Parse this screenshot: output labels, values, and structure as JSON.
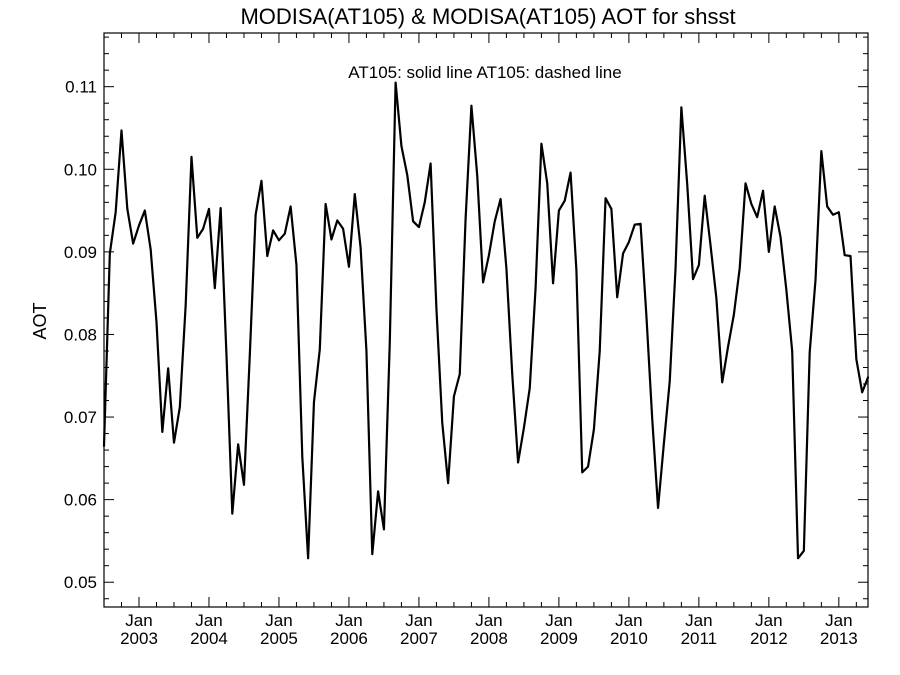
{
  "chart_data": {
    "type": "line",
    "title": "MODISA(AT105) & MODISA(AT105)  AOT for shsst",
    "legend_text": "AT105: solid line   AT105: dashed line",
    "ylabel": "AOT",
    "xlabel": "",
    "ylim": [
      0.047,
      0.1165
    ],
    "y_ticks": [
      "0.05",
      "0.06",
      "0.07",
      "0.08",
      "0.09",
      "0.10",
      "0.11"
    ],
    "x_ticks": [
      {
        "month": "Jan",
        "year": "2003",
        "date": "2003-01"
      },
      {
        "month": "Jan",
        "year": "2004",
        "date": "2004-01"
      },
      {
        "month": "Jan",
        "year": "2005",
        "date": "2005-01"
      },
      {
        "month": "Jan",
        "year": "2006",
        "date": "2006-01"
      },
      {
        "month": "Jan",
        "year": "2007",
        "date": "2007-01"
      },
      {
        "month": "Jan",
        "year": "2008",
        "date": "2008-01"
      },
      {
        "month": "Jan",
        "year": "2009",
        "date": "2009-01"
      },
      {
        "month": "Jan",
        "year": "2010",
        "date": "2010-01"
      },
      {
        "month": "Jan",
        "year": "2011",
        "date": "2011-01"
      },
      {
        "month": "Jan",
        "year": "2012",
        "date": "2012-01"
      },
      {
        "month": "Jan",
        "year": "2013",
        "date": "2013-01"
      }
    ],
    "xlim": [
      "2002-07",
      "2013-06"
    ],
    "grid": false,
    "series": [
      {
        "name": "AT105",
        "style": "solid",
        "color": "#000000",
        "points": [
          [
            "2002-07",
            0.0665
          ],
          [
            "2002-08",
            0.0898
          ],
          [
            "2002-09",
            0.0948
          ],
          [
            "2002-10",
            0.1047
          ],
          [
            "2002-11",
            0.0952
          ],
          [
            "2002-12",
            0.091
          ],
          [
            "2003-01",
            0.0932
          ],
          [
            "2003-02",
            0.095
          ],
          [
            "2003-03",
            0.0903
          ],
          [
            "2003-04",
            0.0815
          ],
          [
            "2003-05",
            0.0682
          ],
          [
            "2003-06",
            0.0759
          ],
          [
            "2003-07",
            0.0669
          ],
          [
            "2003-08",
            0.0712
          ],
          [
            "2003-09",
            0.0835
          ],
          [
            "2003-10",
            0.1015
          ],
          [
            "2003-11",
            0.0917
          ],
          [
            "2003-12",
            0.0928
          ],
          [
            "2004-01",
            0.0952
          ],
          [
            "2004-02",
            0.0856
          ],
          [
            "2004-03",
            0.0953
          ],
          [
            "2004-04",
            0.0775
          ],
          [
            "2004-05",
            0.0583
          ],
          [
            "2004-06",
            0.0667
          ],
          [
            "2004-07",
            0.0618
          ],
          [
            "2004-08",
            0.0775
          ],
          [
            "2004-09",
            0.0945
          ],
          [
            "2004-10",
            0.0986
          ],
          [
            "2004-11",
            0.0895
          ],
          [
            "2004-12",
            0.0926
          ],
          [
            "2005-01",
            0.0914
          ],
          [
            "2005-02",
            0.0922
          ],
          [
            "2005-03",
            0.0955
          ],
          [
            "2005-04",
            0.0884
          ],
          [
            "2005-05",
            0.0652
          ],
          [
            "2005-06",
            0.0529
          ],
          [
            "2005-07",
            0.0718
          ],
          [
            "2005-08",
            0.0782
          ],
          [
            "2005-09",
            0.0958
          ],
          [
            "2005-10",
            0.0915
          ],
          [
            "2005-11",
            0.0938
          ],
          [
            "2005-12",
            0.0928
          ],
          [
            "2006-01",
            0.0882
          ],
          [
            "2006-02",
            0.097
          ],
          [
            "2006-03",
            0.0905
          ],
          [
            "2006-04",
            0.078
          ],
          [
            "2006-05",
            0.0534
          ],
          [
            "2006-06",
            0.061
          ],
          [
            "2006-07",
            0.0564
          ],
          [
            "2006-08",
            0.079
          ],
          [
            "2006-09",
            0.1105
          ],
          [
            "2006-10",
            0.1028
          ],
          [
            "2006-11",
            0.0993
          ],
          [
            "2006-12",
            0.0937
          ],
          [
            "2007-01",
            0.093
          ],
          [
            "2007-02",
            0.096
          ],
          [
            "2007-03",
            0.1007
          ],
          [
            "2007-04",
            0.0831
          ],
          [
            "2007-05",
            0.0693
          ],
          [
            "2007-06",
            0.062
          ],
          [
            "2007-07",
            0.0725
          ],
          [
            "2007-08",
            0.0752
          ],
          [
            "2007-09",
            0.094
          ],
          [
            "2007-10",
            0.1077
          ],
          [
            "2007-11",
            0.0992
          ],
          [
            "2007-12",
            0.0863
          ],
          [
            "2008-01",
            0.0896
          ],
          [
            "2008-02",
            0.0937
          ],
          [
            "2008-03",
            0.0964
          ],
          [
            "2008-04",
            0.088
          ],
          [
            "2008-05",
            0.0752
          ],
          [
            "2008-06",
            0.0645
          ],
          [
            "2008-07",
            0.0687
          ],
          [
            "2008-08",
            0.0735
          ],
          [
            "2008-09",
            0.0856
          ],
          [
            "2008-10",
            0.1031
          ],
          [
            "2008-11",
            0.0983
          ],
          [
            "2008-12",
            0.0862
          ],
          [
            "2009-01",
            0.095
          ],
          [
            "2009-02",
            0.0962
          ],
          [
            "2009-03",
            0.0996
          ],
          [
            "2009-04",
            0.0878
          ],
          [
            "2009-05",
            0.0633
          ],
          [
            "2009-06",
            0.064
          ],
          [
            "2009-07",
            0.0685
          ],
          [
            "2009-08",
            0.078
          ],
          [
            "2009-09",
            0.0965
          ],
          [
            "2009-10",
            0.0952
          ],
          [
            "2009-11",
            0.0845
          ],
          [
            "2009-12",
            0.0898
          ],
          [
            "2010-01",
            0.0912
          ],
          [
            "2010-02",
            0.0933
          ],
          [
            "2010-03",
            0.0934
          ],
          [
            "2010-04",
            0.0823
          ],
          [
            "2010-05",
            0.0698
          ],
          [
            "2010-06",
            0.059
          ],
          [
            "2010-07",
            0.0668
          ],
          [
            "2010-08",
            0.0743
          ],
          [
            "2010-09",
            0.088
          ],
          [
            "2010-10",
            0.1075
          ],
          [
            "2010-11",
            0.0982
          ],
          [
            "2010-12",
            0.0867
          ],
          [
            "2011-01",
            0.0884
          ],
          [
            "2011-02",
            0.0968
          ],
          [
            "2011-03",
            0.0908
          ],
          [
            "2011-04",
            0.0844
          ],
          [
            "2011-05",
            0.0742
          ],
          [
            "2011-06",
            0.0785
          ],
          [
            "2011-07",
            0.0824
          ],
          [
            "2011-08",
            0.088
          ],
          [
            "2011-09",
            0.0983
          ],
          [
            "2011-10",
            0.0958
          ],
          [
            "2011-11",
            0.0942
          ],
          [
            "2011-12",
            0.0974
          ],
          [
            "2012-01",
            0.09
          ],
          [
            "2012-02",
            0.0955
          ],
          [
            "2012-03",
            0.0918
          ],
          [
            "2012-04",
            0.0854
          ],
          [
            "2012-05",
            0.078
          ],
          [
            "2012-06",
            0.0529
          ],
          [
            "2012-07",
            0.0538
          ],
          [
            "2012-08",
            0.0778
          ],
          [
            "2012-09",
            0.0866
          ],
          [
            "2012-10",
            0.1022
          ],
          [
            "2012-11",
            0.0955
          ],
          [
            "2012-12",
            0.0945
          ],
          [
            "2013-01",
            0.0948
          ],
          [
            "2013-02",
            0.0896
          ],
          [
            "2013-03",
            0.0895
          ],
          [
            "2013-04",
            0.077
          ],
          [
            "2013-05",
            0.073
          ],
          [
            "2013-06",
            0.0748
          ]
        ]
      }
    ]
  }
}
